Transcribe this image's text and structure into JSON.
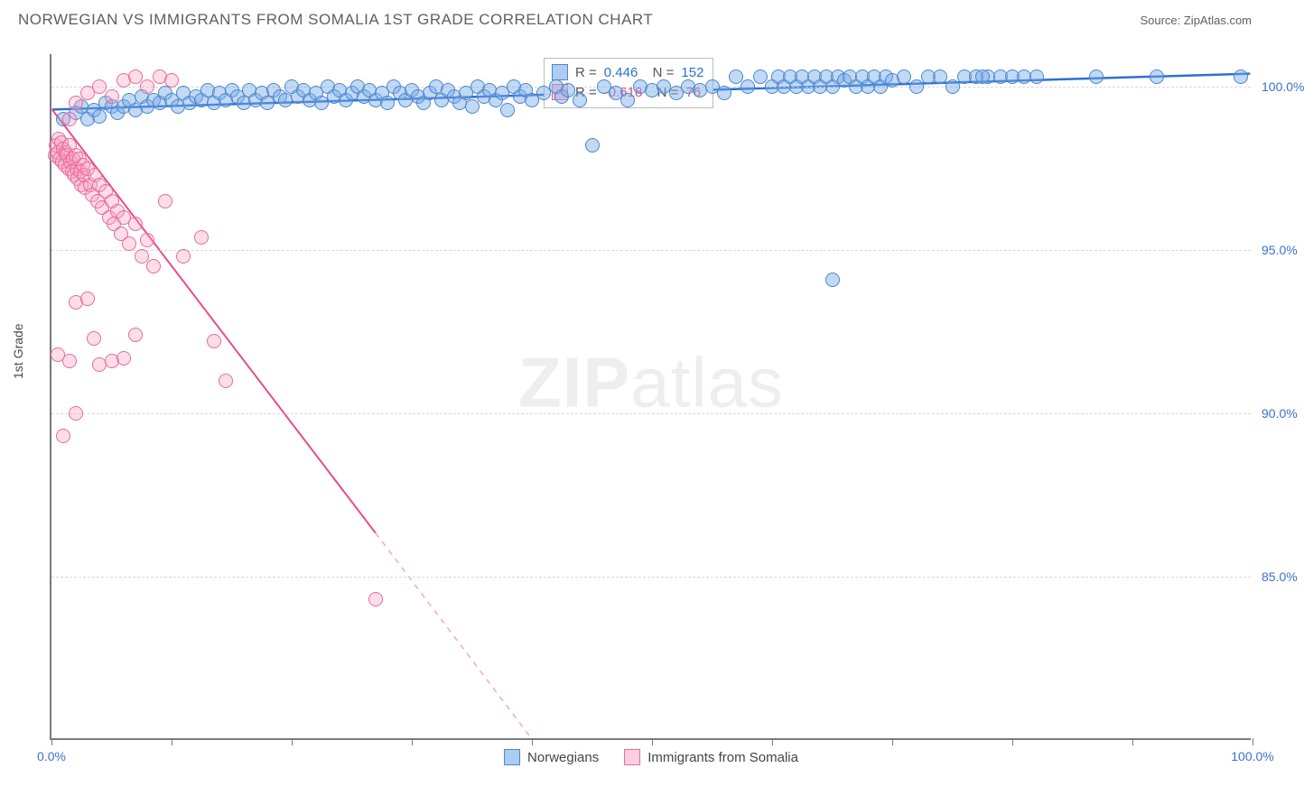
{
  "header": {
    "title": "NORWEGIAN VS IMMIGRANTS FROM SOMALIA 1ST GRADE CORRELATION CHART",
    "source": "Source: ZipAtlas.com"
  },
  "chart": {
    "type": "scatter",
    "ylabel": "1st Grade",
    "xlim": [
      0,
      100
    ],
    "ylim": [
      80,
      101
    ],
    "x_ticks": [
      0,
      10,
      20,
      30,
      40,
      50,
      60,
      70,
      80,
      90,
      100
    ],
    "x_tick_labels": {
      "0": "0.0%",
      "100": "100.0%"
    },
    "y_ticks": [
      85,
      90,
      95,
      100
    ],
    "y_tick_labels": {
      "85": "85.0%",
      "90": "90.0%",
      "95": "95.0%",
      "100": "100.0%"
    },
    "background_color": "#ffffff",
    "grid_color": "#d8d8d8",
    "axis_color": "#7a7a7a",
    "tick_label_color": "#3b6fd6",
    "marker_size": 16,
    "marker_opacity": 0.45,
    "watermark": "ZIPatlas",
    "series": [
      {
        "name": "Norwegians",
        "color_fill": "#78aae6",
        "color_stroke": "#4a85d0",
        "R": "0.446",
        "N": "152",
        "trend": {
          "x1": 0,
          "y1": 99.3,
          "x2": 100,
          "y2": 100.4,
          "color": "#2d6fd4",
          "width": 2.5
        },
        "points": [
          [
            1,
            99.0
          ],
          [
            2,
            99.2
          ],
          [
            2.5,
            99.4
          ],
          [
            3,
            99.0
          ],
          [
            3.5,
            99.3
          ],
          [
            4,
            99.1
          ],
          [
            4.5,
            99.5
          ],
          [
            5,
            99.4
          ],
          [
            5.5,
            99.2
          ],
          [
            6,
            99.4
          ],
          [
            6.5,
            99.6
          ],
          [
            7,
            99.3
          ],
          [
            7.5,
            99.7
          ],
          [
            8,
            99.4
          ],
          [
            8.5,
            99.6
          ],
          [
            9,
            99.5
          ],
          [
            9.5,
            99.8
          ],
          [
            10,
            99.6
          ],
          [
            10.5,
            99.4
          ],
          [
            11,
            99.8
          ],
          [
            11.5,
            99.5
          ],
          [
            12,
            99.7
          ],
          [
            12.5,
            99.6
          ],
          [
            13,
            99.9
          ],
          [
            13.5,
            99.5
          ],
          [
            14,
            99.8
          ],
          [
            14.5,
            99.6
          ],
          [
            15,
            99.9
          ],
          [
            15.5,
            99.7
          ],
          [
            16,
            99.5
          ],
          [
            16.5,
            99.9
          ],
          [
            17,
            99.6
          ],
          [
            17.5,
            99.8
          ],
          [
            18,
            99.5
          ],
          [
            18.5,
            99.9
          ],
          [
            19,
            99.7
          ],
          [
            19.5,
            99.6
          ],
          [
            20,
            100.0
          ],
          [
            20.5,
            99.7
          ],
          [
            21,
            99.9
          ],
          [
            21.5,
            99.6
          ],
          [
            22,
            99.8
          ],
          [
            22.5,
            99.5
          ],
          [
            23,
            100.0
          ],
          [
            23.5,
            99.7
          ],
          [
            24,
            99.9
          ],
          [
            24.5,
            99.6
          ],
          [
            25,
            99.8
          ],
          [
            25.5,
            100.0
          ],
          [
            26,
            99.7
          ],
          [
            26.5,
            99.9
          ],
          [
            27,
            99.6
          ],
          [
            27.5,
            99.8
          ],
          [
            28,
            99.5
          ],
          [
            28.5,
            100.0
          ],
          [
            29,
            99.8
          ],
          [
            29.5,
            99.6
          ],
          [
            30,
            99.9
          ],
          [
            30.5,
            99.7
          ],
          [
            31,
            99.5
          ],
          [
            31.5,
            99.8
          ],
          [
            32,
            100.0
          ],
          [
            32.5,
            99.6
          ],
          [
            33,
            99.9
          ],
          [
            33.5,
            99.7
          ],
          [
            34,
            99.5
          ],
          [
            34.5,
            99.8
          ],
          [
            35,
            99.4
          ],
          [
            35.5,
            100.0
          ],
          [
            36,
            99.7
          ],
          [
            36.5,
            99.9
          ],
          [
            37,
            99.6
          ],
          [
            37.5,
            99.8
          ],
          [
            38,
            99.3
          ],
          [
            38.5,
            100.0
          ],
          [
            39,
            99.7
          ],
          [
            39.5,
            99.9
          ],
          [
            40,
            99.6
          ],
          [
            41,
            99.8
          ],
          [
            42,
            100.0
          ],
          [
            42.5,
            99.7
          ],
          [
            43,
            99.9
          ],
          [
            44,
            99.6
          ],
          [
            45,
            98.2
          ],
          [
            46,
            100.0
          ],
          [
            47,
            99.8
          ],
          [
            48,
            99.6
          ],
          [
            49,
            100.0
          ],
          [
            50,
            99.9
          ],
          [
            51,
            100.0
          ],
          [
            52,
            99.8
          ],
          [
            53,
            100.0
          ],
          [
            54,
            99.9
          ],
          [
            55,
            100.0
          ],
          [
            56,
            99.8
          ],
          [
            57,
            100.3
          ],
          [
            58,
            100.0
          ],
          [
            59,
            100.3
          ],
          [
            60,
            100.0
          ],
          [
            60.5,
            100.3
          ],
          [
            61,
            100.0
          ],
          [
            61.5,
            100.3
          ],
          [
            62,
            100.0
          ],
          [
            62.5,
            100.3
          ],
          [
            63,
            100.0
          ],
          [
            63.5,
            100.3
          ],
          [
            64,
            100.0
          ],
          [
            64.5,
            100.3
          ],
          [
            65,
            100.0
          ],
          [
            65.5,
            100.3
          ],
          [
            66,
            100.2
          ],
          [
            66.5,
            100.3
          ],
          [
            67,
            100.0
          ],
          [
            67.5,
            100.3
          ],
          [
            68,
            100.0
          ],
          [
            68.5,
            100.3
          ],
          [
            69,
            100.0
          ],
          [
            69.5,
            100.3
          ],
          [
            70,
            100.2
          ],
          [
            71,
            100.3
          ],
          [
            72,
            100.0
          ],
          [
            73,
            100.3
          ],
          [
            74,
            100.3
          ],
          [
            75,
            100.0
          ],
          [
            76,
            100.3
          ],
          [
            77,
            100.3
          ],
          [
            78,
            100.3
          ],
          [
            79,
            100.3
          ],
          [
            80,
            100.3
          ],
          [
            81,
            100.3
          ],
          [
            82,
            100.3
          ],
          [
            65,
            94.1
          ],
          [
            77.5,
            100.3
          ],
          [
            87,
            100.3
          ],
          [
            92,
            100.3
          ],
          [
            99,
            100.3
          ]
        ]
      },
      {
        "name": "Immigrants from Somalia",
        "color_fill": "#fba2be",
        "color_stroke": "#e86a9a",
        "R": "-0.618",
        "N": "76",
        "trend": {
          "x1": 0,
          "y1": 99.3,
          "x2": 40,
          "y2": 80.0,
          "color": "#e84c88",
          "width": 2,
          "dash_x1": 40,
          "dash_y1": 80.0,
          "dash_x2": 37,
          "dash_y2": 81.5
        },
        "trend_dash": {
          "x1": 27,
          "y1": 86.3,
          "x2": 40,
          "y2": 80.0,
          "color": "#f4a6c1",
          "width": 1.5
        },
        "trend_solid": {
          "x1": 0,
          "y1": 99.3,
          "x2": 27,
          "y2": 86.3,
          "color": "#e84c88",
          "width": 2
        },
        "points": [
          [
            0.3,
            97.9
          ],
          [
            0.4,
            98.2
          ],
          [
            0.5,
            98.0
          ],
          [
            0.6,
            98.4
          ],
          [
            0.7,
            97.8
          ],
          [
            0.8,
            98.3
          ],
          [
            0.9,
            97.7
          ],
          [
            1.0,
            98.1
          ],
          [
            1.1,
            97.6
          ],
          [
            1.2,
            98.0
          ],
          [
            1.3,
            97.9
          ],
          [
            1.4,
            97.5
          ],
          [
            1.5,
            98.2
          ],
          [
            1.6,
            97.7
          ],
          [
            1.7,
            97.4
          ],
          [
            1.8,
            97.8
          ],
          [
            1.9,
            97.3
          ],
          [
            2.0,
            97.9
          ],
          [
            2.1,
            97.5
          ],
          [
            2.2,
            97.2
          ],
          [
            2.3,
            97.8
          ],
          [
            2.4,
            97.4
          ],
          [
            2.5,
            97.0
          ],
          [
            2.6,
            97.6
          ],
          [
            2.7,
            97.3
          ],
          [
            2.8,
            96.9
          ],
          [
            3.0,
            97.5
          ],
          [
            3.2,
            97.0
          ],
          [
            3.4,
            96.7
          ],
          [
            3.6,
            97.3
          ],
          [
            3.8,
            96.5
          ],
          [
            4.0,
            97.0
          ],
          [
            4.2,
            96.3
          ],
          [
            4.5,
            96.8
          ],
          [
            4.8,
            96.0
          ],
          [
            5.0,
            96.5
          ],
          [
            5.2,
            95.8
          ],
          [
            5.5,
            96.2
          ],
          [
            5.8,
            95.5
          ],
          [
            6.0,
            96.0
          ],
          [
            6.5,
            95.2
          ],
          [
            7.0,
            95.8
          ],
          [
            7.5,
            94.8
          ],
          [
            8.0,
            95.3
          ],
          [
            8.5,
            94.5
          ],
          [
            1.5,
            99.0
          ],
          [
            2.0,
            99.5
          ],
          [
            3.0,
            99.8
          ],
          [
            4.0,
            100.0
          ],
          [
            5.0,
            99.7
          ],
          [
            6.0,
            100.2
          ],
          [
            7.0,
            100.3
          ],
          [
            8.0,
            100.0
          ],
          [
            9.0,
            100.3
          ],
          [
            10.0,
            100.2
          ],
          [
            2.0,
            93.4
          ],
          [
            3.0,
            93.5
          ],
          [
            3.5,
            92.3
          ],
          [
            4.0,
            91.5
          ],
          [
            5.0,
            91.6
          ],
          [
            6.0,
            91.7
          ],
          [
            7.0,
            92.4
          ],
          [
            0.5,
            91.8
          ],
          [
            1.5,
            91.6
          ],
          [
            2.0,
            90.0
          ],
          [
            1.0,
            89.3
          ],
          [
            9.5,
            96.5
          ],
          [
            11.0,
            94.8
          ],
          [
            12.5,
            95.4
          ],
          [
            13.5,
            92.2
          ],
          [
            14.5,
            91.0
          ],
          [
            27.0,
            84.3
          ]
        ]
      }
    ],
    "legend_bottom": [
      {
        "swatch": "blue",
        "label": "Norwegians"
      },
      {
        "swatch": "pink",
        "label": "Immigrants from Somalia"
      }
    ]
  }
}
